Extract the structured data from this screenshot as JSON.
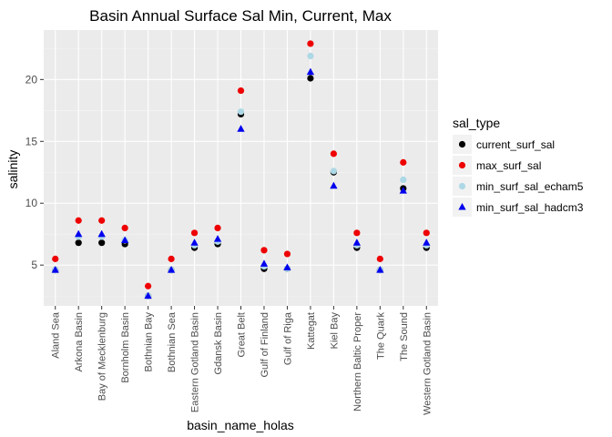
{
  "chart_data": {
    "type": "scatter",
    "title": "Basin Annual Surface Sal Min, Current, Max",
    "xlabel": "basin_name_holas",
    "ylabel": "salinity",
    "ylim": [
      1.7,
      24.0
    ],
    "yticks": [
      5,
      10,
      15,
      20
    ],
    "grid": true,
    "legend_position": "right",
    "legend_title": "sal_type",
    "categories": [
      "Aland Sea",
      "Arkona Basin",
      "Bay of Mecklenburg",
      "Bornholm Basin",
      "Bothnian Bay",
      "Bothnian Sea",
      "Eastern Gotland Basin",
      "Gdansk Basin",
      "Great Belt",
      "Gulf of Finland",
      "Gulf of Riga",
      "Kattegat",
      "Kiel Bay",
      "Northern Baltic Proper",
      "The Quark",
      "The Sound",
      "Western Gotland Basin"
    ],
    "series": [
      {
        "name": "current_surf_sal",
        "color": "#000000",
        "shape": "circle",
        "values": [
          4.6,
          6.8,
          6.8,
          6.7,
          2.5,
          4.6,
          6.4,
          6.7,
          17.2,
          4.7,
          4.7,
          20.1,
          12.5,
          6.4,
          4.6,
          11.2,
          6.4
        ]
      },
      {
        "name": "max_surf_sal",
        "color": "#ee0000",
        "shape": "circle",
        "values": [
          5.5,
          8.6,
          8.6,
          8.0,
          3.3,
          5.5,
          7.6,
          8.0,
          19.1,
          6.2,
          5.9,
          22.9,
          14.0,
          7.6,
          5.5,
          13.3,
          7.6
        ]
      },
      {
        "name": "min_surf_sal_echam5",
        "color": "#add8e6",
        "shape": "circle",
        "values": [
          4.6,
          7.3,
          7.3,
          7.0,
          2.5,
          4.6,
          6.6,
          6.9,
          17.4,
          4.9,
          4.7,
          21.9,
          12.6,
          6.6,
          4.6,
          11.9,
          6.6
        ]
      },
      {
        "name": "min_surf_sal_hadcm3",
        "color": "#0000ee",
        "shape": "triangle",
        "values": [
          4.6,
          7.5,
          7.5,
          7.0,
          2.5,
          4.6,
          6.8,
          7.1,
          16.0,
          5.1,
          4.8,
          20.6,
          11.4,
          6.8,
          4.6,
          11.0,
          6.8
        ]
      }
    ]
  }
}
